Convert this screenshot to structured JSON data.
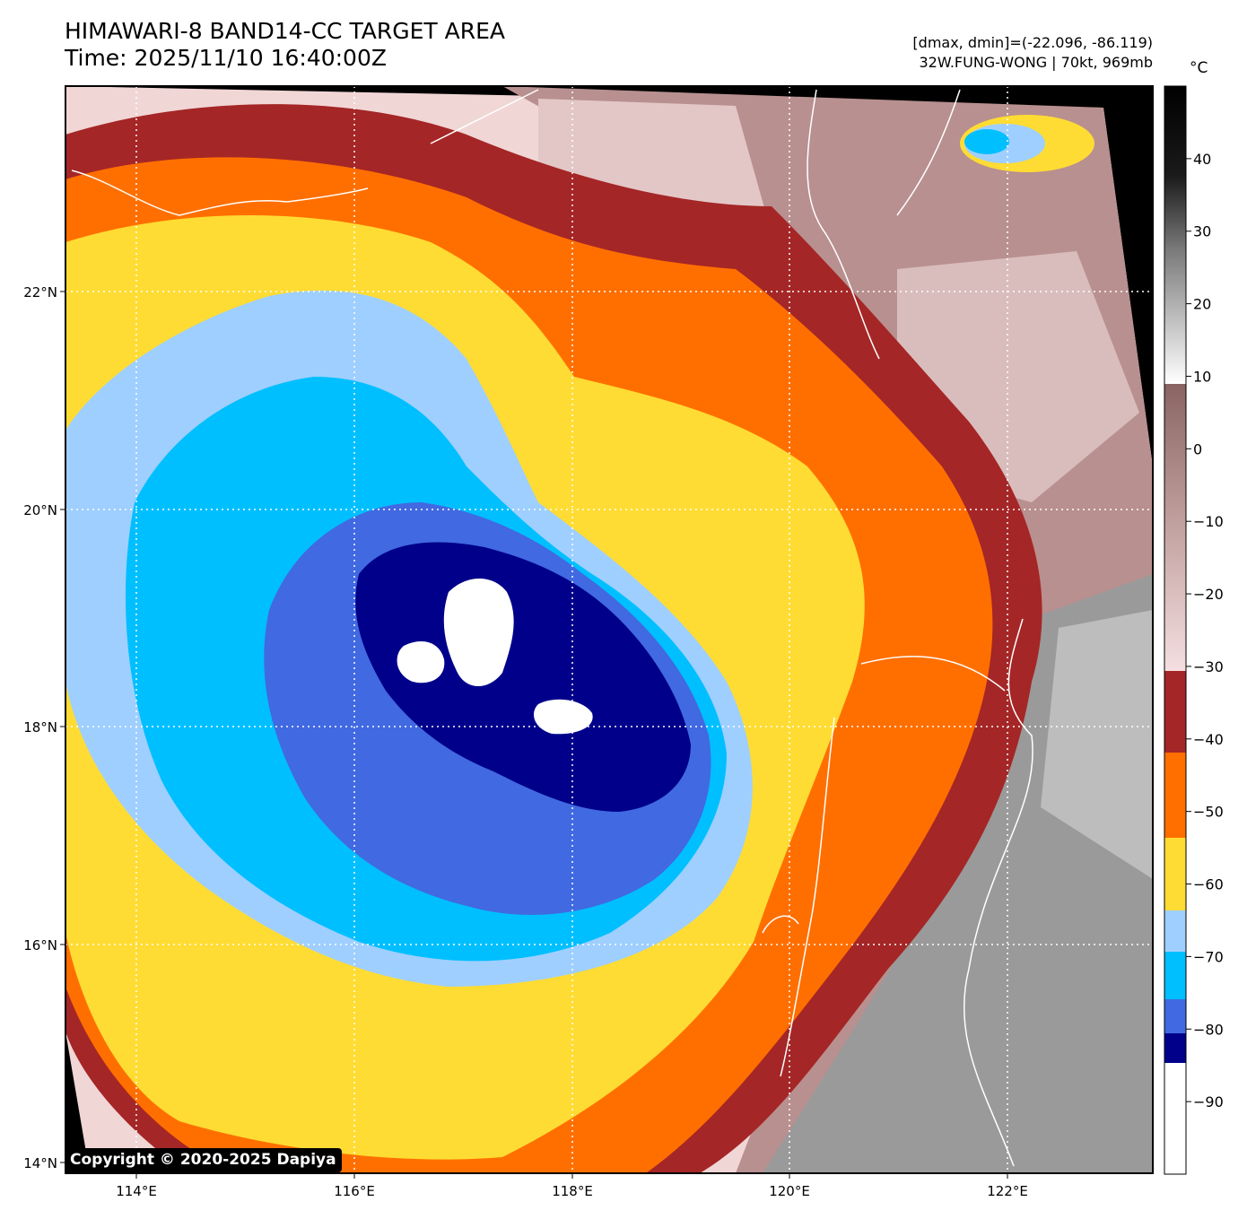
{
  "title": {
    "line1": "HIMAWARI-8 BAND14-CC TARGET AREA",
    "line2": "Time: 2025/11/10 16:40:00Z"
  },
  "info": {
    "line1": "[dmax, dmin]=(-22.096, -86.119)",
    "line2": "32W.FUNG-WONG | 70kt, 969mb"
  },
  "colorbar": {
    "unit": "°C",
    "ticks": [
      "40",
      "30",
      "20",
      "10",
      "0",
      "−10",
      "−20",
      "−30",
      "−40",
      "−50",
      "−60",
      "−70",
      "−80",
      "−90"
    ],
    "tick_values": [
      40,
      30,
      20,
      10,
      0,
      -10,
      -20,
      -30,
      -40,
      -50,
      -60,
      -70,
      -80,
      -90
    ],
    "range": [
      -100,
      50
    ]
  },
  "axes": {
    "lat_labels": [
      "22°N",
      "20°N",
      "18°N",
      "16°N",
      "14°N"
    ],
    "lat_values": [
      22,
      20,
      18,
      16,
      14
    ],
    "lon_labels": [
      "114°E",
      "116°E",
      "118°E",
      "120°E",
      "122°E"
    ],
    "lon_values": [
      114,
      116,
      118,
      120,
      122
    ],
    "gridlines": "dotted"
  },
  "colors": {
    "white_core": "#ffffff",
    "navy": "#00008b",
    "royal_blue": "#4169e1",
    "deep_sky_blue": "#00bfff",
    "light_blue": "#9fcfff",
    "gold": "#ffdc33",
    "orange": "#ff6f00",
    "dark_red": "#a52626",
    "pink": "#f3d6d8",
    "mauve": "#9e7a78",
    "gray": "#909090"
  },
  "copyright": "Copyright © 2020-2025 Dapiya"
}
